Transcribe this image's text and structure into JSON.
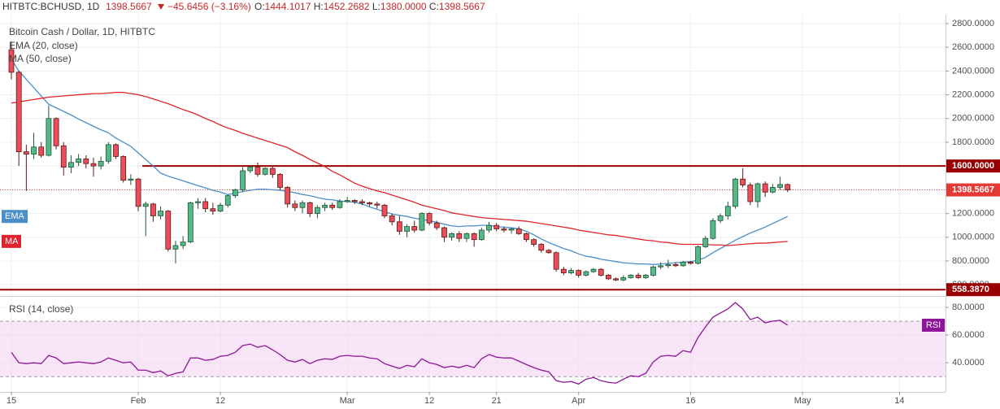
{
  "header": {
    "symbol": "HITBTC:BCHUSD, 1D",
    "last": "1398.5667",
    "change": "−45.6456 (−3.16%)",
    "ohlc": [
      {
        "key": "O:",
        "value": "1444.1017"
      },
      {
        "key": "H:",
        "value": "1452.2682"
      },
      {
        "key": "L:",
        "value": "1380.0000"
      },
      {
        "key": "C:",
        "value": "1398.5667"
      }
    ]
  },
  "chart_data": [
    {
      "type": "candlestick",
      "title": "Bitcoin Cash / Dollar, 1D, HITBTC",
      "categories": [
        "Jan 15",
        "Jan 16",
        "Jan 17",
        "Jan 18",
        "Jan 19",
        "Jan 20",
        "Jan 21",
        "Jan 22",
        "Jan 23",
        "Jan 24",
        "Jan 25",
        "Jan 26",
        "Jan 27",
        "Jan 28",
        "Jan 29",
        "Jan 30",
        "Jan 31",
        "Feb 1",
        "Feb 2",
        "Feb 3",
        "Feb 4",
        "Feb 5",
        "Feb 6",
        "Feb 7",
        "Feb 8",
        "Feb 9",
        "Feb 10",
        "Feb 11",
        "Feb 12",
        "Feb 13",
        "Feb 14",
        "Feb 15",
        "Feb 16",
        "Feb 17",
        "Feb 18",
        "Feb 19",
        "Feb 20",
        "Feb 21",
        "Feb 22",
        "Feb 23",
        "Feb 24",
        "Feb 25",
        "Feb 26",
        "Feb 27",
        "Feb 28",
        "Mar 1",
        "Mar 2",
        "Mar 3",
        "Mar 4",
        "Mar 5",
        "Mar 6",
        "Mar 7",
        "Mar 8",
        "Mar 9",
        "Mar 10",
        "Mar 11",
        "Mar 12",
        "Mar 13",
        "Mar 14",
        "Mar 15",
        "Mar 16",
        "Mar 17",
        "Mar 18",
        "Mar 19",
        "Mar 20",
        "Mar 21",
        "Mar 22",
        "Mar 23",
        "Mar 24",
        "Mar 25",
        "Mar 26",
        "Mar 27",
        "Mar 28",
        "Mar 29",
        "Mar 30",
        "Mar 31",
        "Apr 1",
        "Apr 2",
        "Apr 3",
        "Apr 4",
        "Apr 5",
        "Apr 6",
        "Apr 7",
        "Apr 8",
        "Apr 9",
        "Apr 10",
        "Apr 11",
        "Apr 12",
        "Apr 13",
        "Apr 14",
        "Apr 15",
        "Apr 16",
        "Apr 17",
        "Apr 18",
        "Apr 19",
        "Apr 20",
        "Apr 21",
        "Apr 22",
        "Apr 23",
        "Apr 24",
        "Apr 25",
        "Apr 26",
        "Apr 27",
        "Apr 28",
        "Apr 29"
      ],
      "open": [
        2580,
        2390,
        1720,
        1700,
        1760,
        1690,
        2000,
        1770,
        1590,
        1630,
        1660,
        1620,
        1600,
        1640,
        1780,
        1680,
        1480,
        1490,
        1260,
        1280,
        1180,
        1220,
        900,
        930,
        960,
        1290,
        1300,
        1240,
        1220,
        1270,
        1350,
        1400,
        1560,
        1590,
        1530,
        1580,
        1530,
        1420,
        1280,
        1250,
        1290,
        1200,
        1250,
        1270,
        1250,
        1300,
        1310,
        1300,
        1290,
        1280,
        1270,
        1180,
        1130,
        1050,
        1090,
        1060,
        1200,
        1120,
        1080,
        1000,
        1030,
        990,
        1030,
        980,
        1060,
        1100,
        1070,
        1060,
        1070,
        1030,
        980,
        940,
        890,
        870,
        730,
        700,
        720,
        680,
        710,
        730,
        680,
        650,
        640,
        660,
        680,
        660,
        680,
        750,
        760,
        770,
        760,
        790,
        780,
        920,
        990,
        1140,
        1180,
        1260,
        1490,
        1440,
        1300,
        1450,
        1380,
        1420,
        1444.1017
      ],
      "high": [
        2650,
        2400,
        1780,
        1880,
        1800,
        2110,
        2010,
        1800,
        1690,
        1700,
        1690,
        1670,
        1680,
        1800,
        1790,
        1690,
        1530,
        1500,
        1300,
        1290,
        1260,
        1230,
        970,
        1010,
        1300,
        1330,
        1330,
        1290,
        1290,
        1360,
        1410,
        1590,
        1600,
        1630,
        1590,
        1600,
        1540,
        1430,
        1310,
        1310,
        1300,
        1270,
        1290,
        1290,
        1320,
        1340,
        1320,
        1320,
        1300,
        1300,
        1280,
        1200,
        1180,
        1110,
        1140,
        1210,
        1210,
        1140,
        1090,
        1040,
        1050,
        1040,
        1040,
        1080,
        1130,
        1120,
        1090,
        1080,
        1090,
        1040,
        990,
        950,
        900,
        880,
        750,
        740,
        730,
        720,
        740,
        740,
        690,
        660,
        680,
        690,
        700,
        690,
        760,
        790,
        810,
        790,
        800,
        800,
        930,
        1010,
        1160,
        1200,
        1300,
        1500,
        1580,
        1460,
        1460,
        1470,
        1450,
        1510,
        1452.2682
      ],
      "low": [
        2330,
        1600,
        1390,
        1660,
        1670,
        1680,
        1740,
        1520,
        1540,
        1600,
        1580,
        1510,
        1570,
        1620,
        1660,
        1460,
        1440,
        1220,
        1010,
        1130,
        1150,
        880,
        780,
        900,
        950,
        1240,
        1210,
        1190,
        1210,
        1250,
        1330,
        1380,
        1540,
        1510,
        1520,
        1500,
        1400,
        1250,
        1220,
        1200,
        1170,
        1160,
        1220,
        1230,
        1240,
        1290,
        1280,
        1270,
        1260,
        1240,
        1160,
        1100,
        1020,
        1000,
        1040,
        1050,
        1100,
        1060,
        960,
        970,
        960,
        960,
        920,
        970,
        1040,
        1050,
        1040,
        1030,
        1020,
        960,
        920,
        870,
        860,
        710,
        680,
        690,
        660,
        670,
        700,
        670,
        640,
        630,
        630,
        650,
        650,
        650,
        670,
        730,
        740,
        750,
        750,
        770,
        770,
        910,
        980,
        1120,
        1150,
        1240,
        1420,
        1270,
        1250,
        1340,
        1370,
        1400,
        1380
      ],
      "close": [
        2390,
        1720,
        1700,
        1760,
        1690,
        2000,
        1770,
        1590,
        1630,
        1660,
        1620,
        1600,
        1640,
        1780,
        1680,
        1480,
        1490,
        1260,
        1280,
        1180,
        1220,
        900,
        930,
        960,
        1290,
        1300,
        1240,
        1220,
        1270,
        1350,
        1400,
        1560,
        1590,
        1530,
        1580,
        1530,
        1420,
        1280,
        1250,
        1290,
        1200,
        1250,
        1270,
        1250,
        1300,
        1310,
        1300,
        1290,
        1280,
        1270,
        1180,
        1130,
        1050,
        1090,
        1060,
        1200,
        1120,
        1080,
        1000,
        1030,
        990,
        1030,
        980,
        1060,
        1100,
        1070,
        1060,
        1070,
        1030,
        980,
        940,
        890,
        870,
        730,
        700,
        720,
        680,
        710,
        730,
        680,
        650,
        640,
        660,
        680,
        660,
        680,
        750,
        760,
        770,
        760,
        790,
        780,
        920,
        990,
        1140,
        1180,
        1260,
        1490,
        1440,
        1300,
        1450,
        1380,
        1420,
        1444.1017,
        1398.5667
      ],
      "up_color": "#53b987",
      "down_color": "#eb4d5c",
      "series": [
        {
          "name": "EMA (20, close)",
          "tag": "EMA",
          "color": "#4a8fc8",
          "values": [
            2500,
            2400,
            2330,
            2260,
            2190,
            2120,
            2090,
            2060,
            2030,
            1995,
            1965,
            1935,
            1905,
            1880,
            1835,
            1800,
            1765,
            1710,
            1655,
            1600,
            1540,
            1515,
            1495,
            1475,
            1455,
            1435,
            1415,
            1395,
            1380,
            1360,
            1370,
            1385,
            1395,
            1405,
            1405,
            1400,
            1395,
            1385,
            1375,
            1360,
            1350,
            1335,
            1320,
            1315,
            1305,
            1300,
            1295,
            1280,
            1255,
            1235,
            1215,
            1195,
            1185,
            1175,
            1160,
            1150,
            1140,
            1125,
            1110,
            1095,
            1090,
            1095,
            1095,
            1100,
            1100,
            1090,
            1085,
            1080,
            1070,
            1050,
            1020,
            985,
            955,
            930,
            905,
            885,
            860,
            840,
            830,
            815,
            805,
            795,
            785,
            780,
            775,
            775,
            770,
            775,
            780,
            785,
            790,
            795,
            805,
            830,
            870,
            905,
            940,
            975,
            1005,
            1035,
            1060,
            1085,
            1115,
            1145,
            1175
          ]
        },
        {
          "name": "MA (50, close)",
          "tag": "MA",
          "color": "#e0232c",
          "values": [
            2130,
            2140,
            2150,
            2160,
            2170,
            2180,
            2185,
            2190,
            2195,
            2200,
            2205,
            2210,
            2210,
            2215,
            2220,
            2220,
            2210,
            2200,
            2185,
            2165,
            2145,
            2125,
            2100,
            2075,
            2055,
            2030,
            2000,
            1975,
            1945,
            1920,
            1900,
            1875,
            1855,
            1835,
            1815,
            1795,
            1775,
            1755,
            1720,
            1690,
            1655,
            1625,
            1595,
            1555,
            1525,
            1490,
            1455,
            1430,
            1410,
            1390,
            1375,
            1355,
            1335,
            1315,
            1295,
            1270,
            1255,
            1240,
            1225,
            1205,
            1195,
            1185,
            1175,
            1165,
            1160,
            1155,
            1150,
            1145,
            1140,
            1135,
            1125,
            1115,
            1105,
            1095,
            1085,
            1075,
            1060,
            1050,
            1040,
            1030,
            1020,
            1015,
            1005,
            995,
            985,
            975,
            970,
            960,
            955,
            945,
            940,
            940,
            940,
            940,
            935,
            935,
            930,
            935,
            940,
            945,
            950,
            950,
            955,
            960,
            965
          ]
        }
      ],
      "ylim": [
        512,
        2875
      ],
      "yticks": [
        {
          "value": 2800,
          "label": "2800.0000"
        },
        {
          "value": 2600,
          "label": "2600.0000"
        },
        {
          "value": 2400,
          "label": "2400.0000"
        },
        {
          "value": 2200,
          "label": "2200.0000"
        },
        {
          "value": 2000,
          "label": "2000.0000"
        },
        {
          "value": 1800,
          "label": "1800.0000"
        },
        {
          "value": 1600,
          "label": "1600.0000"
        },
        {
          "value": 1400,
          "label": "1400.0000"
        },
        {
          "value": 1200,
          "label": "1200.0000"
        },
        {
          "value": 1000,
          "label": "1000.0000"
        },
        {
          "value": 800,
          "label": "800.0000"
        },
        {
          "value": 600,
          "label": "600.0000"
        }
      ],
      "xticks": [
        {
          "value": "Jan 15",
          "label": "15"
        },
        {
          "value": "Feb 1",
          "label": "Feb"
        },
        {
          "value": "Feb 12",
          "label": "12"
        },
        {
          "value": "Mar 1",
          "label": "Mar"
        },
        {
          "value": "Mar 12",
          "label": "12"
        },
        {
          "value": "Mar 21",
          "label": "21"
        },
        {
          "value": "Apr 1",
          "label": "Apr"
        },
        {
          "value": "Apr 16",
          "label": "16"
        },
        {
          "value": "May 1",
          "label": "May"
        },
        {
          "value": "May 14",
          "label": "14"
        }
      ],
      "hlines": [
        {
          "value": 1600,
          "label": "1600.0000",
          "color": "#990000"
        },
        {
          "value": 558.387,
          "label": "558.3870",
          "color": "#990000"
        }
      ],
      "last_price": {
        "value": 1398.5667,
        "label": "1398.5667",
        "color": "#e53935"
      },
      "grid": true
    },
    {
      "type": "line",
      "title": "RSI (14, close)",
      "series": [
        {
          "name": "RSI",
          "color": "#8e1599",
          "values": [
            47.6,
            40,
            39.4,
            40,
            39.4,
            45.3,
            43.5,
            39.4,
            40,
            40.6,
            40,
            39.4,
            40.6,
            43.5,
            41.8,
            40,
            40.6,
            34.7,
            34.7,
            32.9,
            34.1,
            30.6,
            32.4,
            33.5,
            43.5,
            43.5,
            41.8,
            42.4,
            44.7,
            45.3,
            47.6,
            52.4,
            53.5,
            51.2,
            52.4,
            49.4,
            45.9,
            41.8,
            40.6,
            42.4,
            39.4,
            41.8,
            42.9,
            42.4,
            44.7,
            45.3,
            44.7,
            44.7,
            43.5,
            42.9,
            39.4,
            37.6,
            35.9,
            38.2,
            37.1,
            42.9,
            40,
            38.8,
            36.5,
            37.6,
            36.5,
            38.2,
            36.5,
            42.9,
            45.9,
            44.1,
            43.5,
            43.5,
            41.2,
            38.8,
            36.5,
            34.7,
            33.5,
            27.1,
            25.9,
            26.5,
            24.7,
            28.2,
            29.4,
            27.1,
            25.9,
            25.3,
            28.2,
            30.6,
            30,
            32.4,
            40.6,
            44.7,
            45.3,
            44.7,
            48.8,
            47.6,
            58.2,
            65.9,
            72.9,
            75.9,
            78.8,
            83.5,
            78.8,
            71.2,
            72.9,
            68.8,
            70,
            70.6,
            67.1
          ]
        }
      ],
      "band": [
        30,
        70
      ],
      "band_color": "#f3d3f2",
      "ylim": [
        19,
        87
      ],
      "yticks": [
        {
          "value": 80,
          "label": "80.0000"
        },
        {
          "value": 60,
          "label": "60.0000"
        },
        {
          "value": 40,
          "label": "40.0000"
        }
      ],
      "grid": true
    }
  ]
}
